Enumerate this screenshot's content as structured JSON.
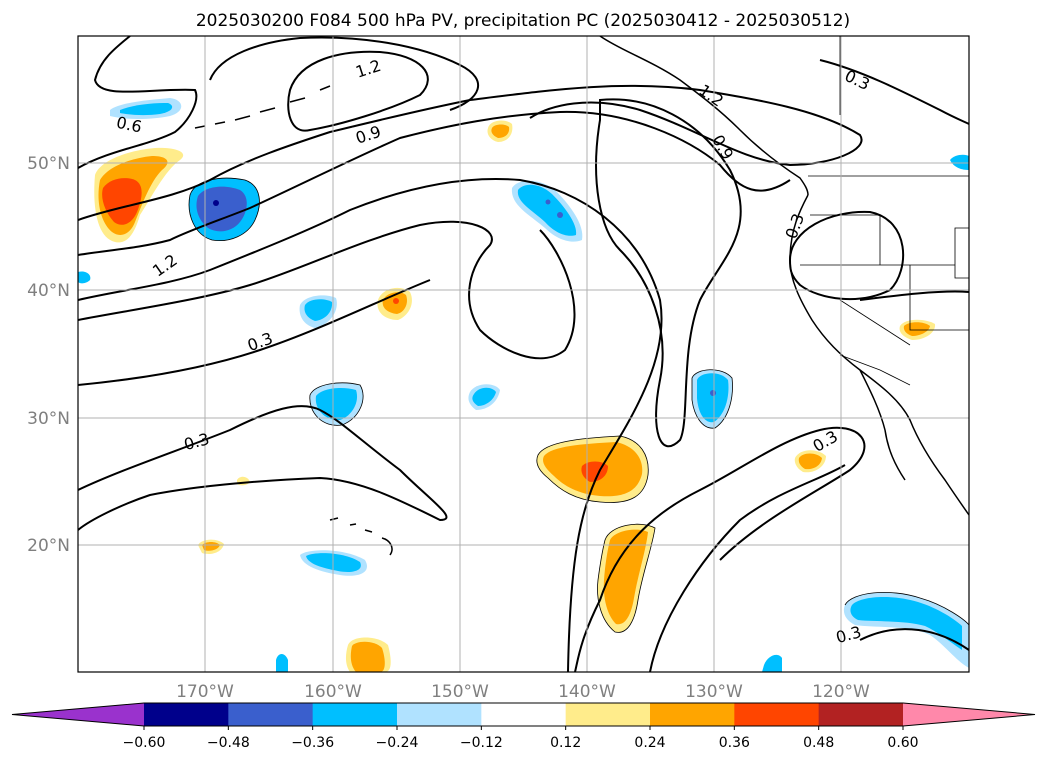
{
  "title": "2025030200 F084 500 hPa PV, precipitation PC (2025030412 - 2025030512)",
  "map": {
    "lon_ticks": [
      "170°W",
      "160°W",
      "150°W",
      "140°W",
      "130°W",
      "120°W"
    ],
    "lat_ticks": [
      "50°N",
      "40°N",
      "30°N",
      "20°N"
    ],
    "extent": {
      "lon": [
        -180,
        -110
      ],
      "lat": [
        10,
        60
      ]
    },
    "grid": true
  },
  "contour_labels": [
    "0.6",
    "1.2",
    "0.9",
    "1.2",
    "0.3",
    "0.3",
    "0.3",
    "0.9",
    "0.3",
    "0.3",
    "0.3",
    "1.2"
  ],
  "colorbar": {
    "ticks": [
      "−0.60",
      "−0.48",
      "−0.36",
      "−0.24",
      "−0.12",
      "0.12",
      "0.24",
      "0.36",
      "0.48",
      "0.60"
    ],
    "colors": [
      "#9a32cd",
      "#00008b",
      "#3a5fcd",
      "#00bfff",
      "#b0e2ff",
      "#ffffff",
      "#ffec8b",
      "#ffa500",
      "#ff4500",
      "#b22222",
      "#ff88aa"
    ],
    "extend": "both"
  }
}
